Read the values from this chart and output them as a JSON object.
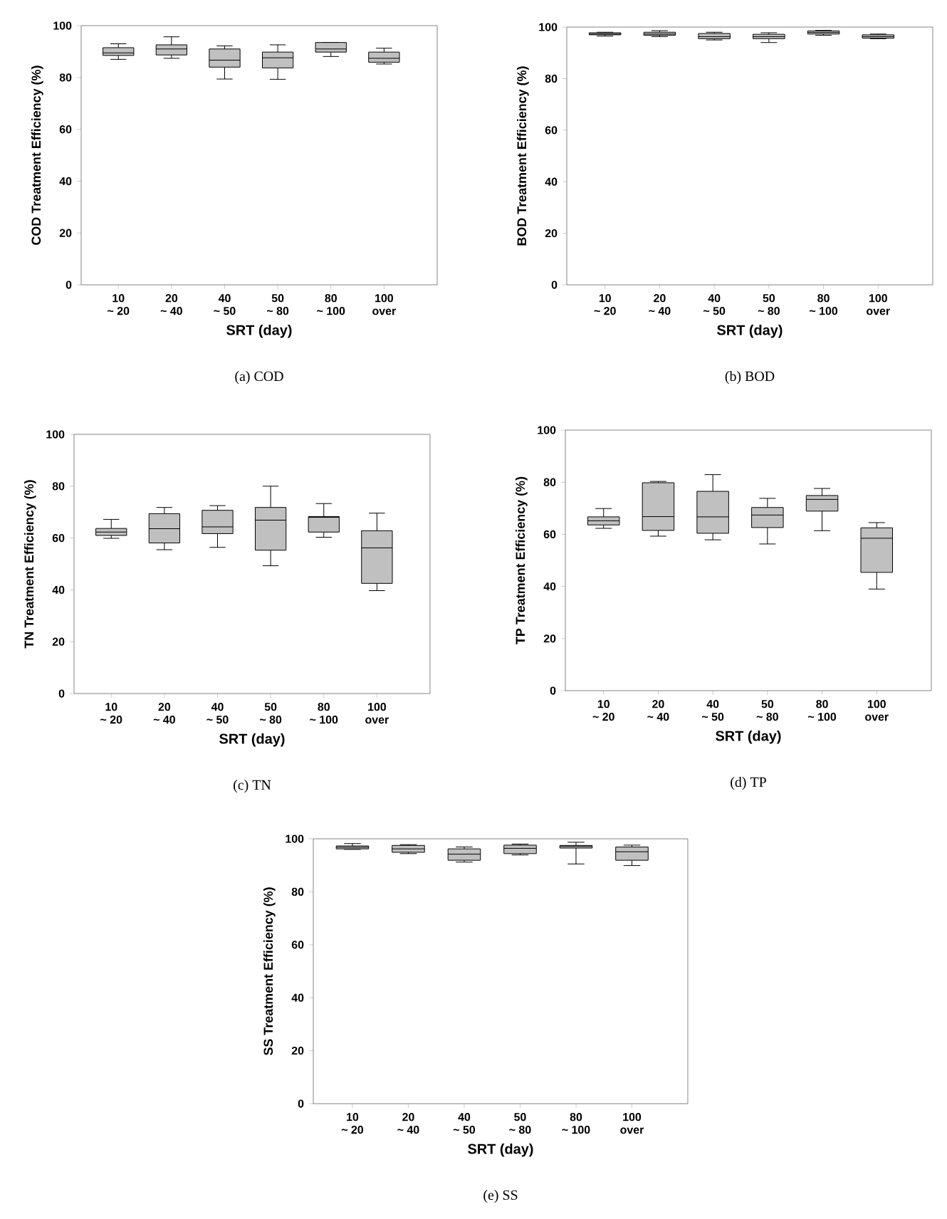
{
  "chart_data": [
    {
      "type": "box",
      "title": "(a)  COD",
      "xlabel": "SRT (day)",
      "ylabel": "COD Treatment Efficiency (%)",
      "categories": [
        "10\n~ 20",
        "20\n~ 40",
        "40\n~ 50",
        "50\n~ 80",
        "80\n~ 100",
        "100\nover"
      ],
      "ylim": [
        0,
        100
      ],
      "yticks": [
        0,
        20,
        40,
        60,
        80,
        100
      ],
      "series": [
        {
          "color": "#c0c0c0",
          "boxes": [
            {
              "low": 87,
              "q1": 88.5,
              "median": 89.5,
              "q3": 91.5,
              "high": 93
            },
            {
              "low": 87.4,
              "q1": 88.7,
              "median": 91,
              "q3": 92.6,
              "high": 95.7
            },
            {
              "low": 79.4,
              "q1": 84,
              "median": 86.7,
              "q3": 91,
              "high": 92.2
            },
            {
              "low": 79.3,
              "q1": 83.7,
              "median": 87.6,
              "q3": 89.8,
              "high": 92.6
            },
            {
              "low": 88.1,
              "q1": 89.8,
              "median": 91,
              "q3": 93.5,
              "high": 93.5
            },
            {
              "low": 85.2,
              "q1": 85.9,
              "median": 87.4,
              "q3": 89.8,
              "high": 91.3
            }
          ]
        }
      ]
    },
    {
      "type": "box",
      "title": "(b)  BOD",
      "xlabel": "SRT (day)",
      "ylabel": "BOD Treatment Efficiency (%)",
      "categories": [
        "10\n~ 20",
        "20\n~ 40",
        "40\n~ 50",
        "50\n~ 80",
        "80\n~ 100",
        "100\nover"
      ],
      "ylim": [
        0,
        100
      ],
      "yticks": [
        0,
        20,
        40,
        60,
        80,
        100
      ],
      "series": [
        {
          "color": "#c0c0c0",
          "boxes": [
            {
              "low": 96.5,
              "q1": 97,
              "median": 97.3,
              "q3": 97.8,
              "high": 98
            },
            {
              "low": 96.3,
              "q1": 96.8,
              "median": 97.3,
              "q3": 98,
              "high": 98.6
            },
            {
              "low": 95,
              "q1": 95.5,
              "median": 96.3,
              "q3": 97.5,
              "high": 98
            },
            {
              "low": 94,
              "q1": 95.5,
              "median": 96.3,
              "q3": 97.2,
              "high": 97.8
            },
            {
              "low": 96.8,
              "q1": 97.3,
              "median": 97.9,
              "q3": 98.5,
              "high": 98.7
            },
            {
              "low": 95.5,
              "q1": 95.7,
              "median": 96.3,
              "q3": 97,
              "high": 97.3
            }
          ]
        }
      ]
    },
    {
      "type": "box",
      "title": "(c)  TN",
      "xlabel": "SRT (day)",
      "ylabel": "TN Treatment Efficiency (%)",
      "categories": [
        "10\n~ 20",
        "20\n~ 40",
        "40\n~ 50",
        "50\n~ 80",
        "80\n~ 100",
        "100\nover"
      ],
      "ylim": [
        0,
        100
      ],
      "yticks": [
        0,
        20,
        40,
        60,
        80,
        100
      ],
      "series": [
        {
          "color": "#c0c0c0",
          "boxes": [
            {
              "low": 59.9,
              "q1": 61,
              "median": 62.3,
              "q3": 63.7,
              "high": 67.2
            },
            {
              "low": 55.5,
              "q1": 58.1,
              "median": 63.6,
              "q3": 69.4,
              "high": 71.8
            },
            {
              "low": 56.4,
              "q1": 61.7,
              "median": 64.3,
              "q3": 70.7,
              "high": 72.5
            },
            {
              "low": 49.3,
              "q1": 55.3,
              "median": 66.9,
              "q3": 71.8,
              "high": 80
            },
            {
              "low": 60.3,
              "q1": 62.3,
              "median": 68,
              "q3": 68.3,
              "high": 73.3
            },
            {
              "low": 39.7,
              "q1": 42.5,
              "median": 56.2,
              "q3": 62.8,
              "high": 69.6
            }
          ]
        }
      ]
    },
    {
      "type": "box",
      "title": "(d)  TP",
      "xlabel": "SRT (day)",
      "ylabel": "TP Treatment Efficiency (%)",
      "categories": [
        "10\n~ 20",
        "20\n~ 40",
        "40\n~ 50",
        "50\n~ 80",
        "80\n~ 100",
        "100\nover"
      ],
      "ylim": [
        0,
        100
      ],
      "yticks": [
        0,
        20,
        40,
        60,
        80,
        100
      ],
      "series": [
        {
          "color": "#c0c0c0",
          "boxes": [
            {
              "low": 62.3,
              "q1": 63.6,
              "median": 65.2,
              "q3": 66.7,
              "high": 69.9
            },
            {
              "low": 59.3,
              "q1": 61.5,
              "median": 66.8,
              "q3": 79.8,
              "high": 80.3
            },
            {
              "low": 57.9,
              "q1": 60.4,
              "median": 66.7,
              "q3": 76.5,
              "high": 82.9
            },
            {
              "low": 56.3,
              "q1": 62.6,
              "median": 67.4,
              "q3": 70.3,
              "high": 73.8
            },
            {
              "low": 61.4,
              "q1": 68.9,
              "median": 73.4,
              "q3": 74.9,
              "high": 77.6
            },
            {
              "low": 39,
              "q1": 45.4,
              "median": 58.5,
              "q3": 62.5,
              "high": 64.5
            }
          ]
        }
      ]
    },
    {
      "type": "box",
      "title": "(e)  SS",
      "xlabel": "SRT (day)",
      "ylabel": "SS Treatment Efficiency (%)",
      "categories": [
        "10\n~ 20",
        "20\n~ 40",
        "40\n~ 50",
        "50\n~ 80",
        "80\n~ 100",
        "100\nover"
      ],
      "ylim": [
        0,
        100
      ],
      "yticks": [
        0,
        20,
        40,
        60,
        80,
        100
      ],
      "series": [
        {
          "color": "#c0c0c0",
          "boxes": [
            {
              "low": 96,
              "q1": 96.2,
              "median": 96.8,
              "q3": 97.3,
              "high": 98.2
            },
            {
              "low": 94.4,
              "q1": 94.9,
              "median": 96.2,
              "q3": 97.5,
              "high": 97.8
            },
            {
              "low": 91.2,
              "q1": 91.9,
              "median": 94.2,
              "q3": 96.2,
              "high": 96.9
            },
            {
              "low": 93.9,
              "q1": 94.4,
              "median": 96.4,
              "q3": 97.6,
              "high": 98
            },
            {
              "low": 90.5,
              "q1": 96.5,
              "median": 97.1,
              "q3": 97.5,
              "high": 98.7
            },
            {
              "low": 89.9,
              "q1": 91.9,
              "median": 95.1,
              "q3": 96.9,
              "high": 97.6
            }
          ]
        }
      ]
    }
  ]
}
